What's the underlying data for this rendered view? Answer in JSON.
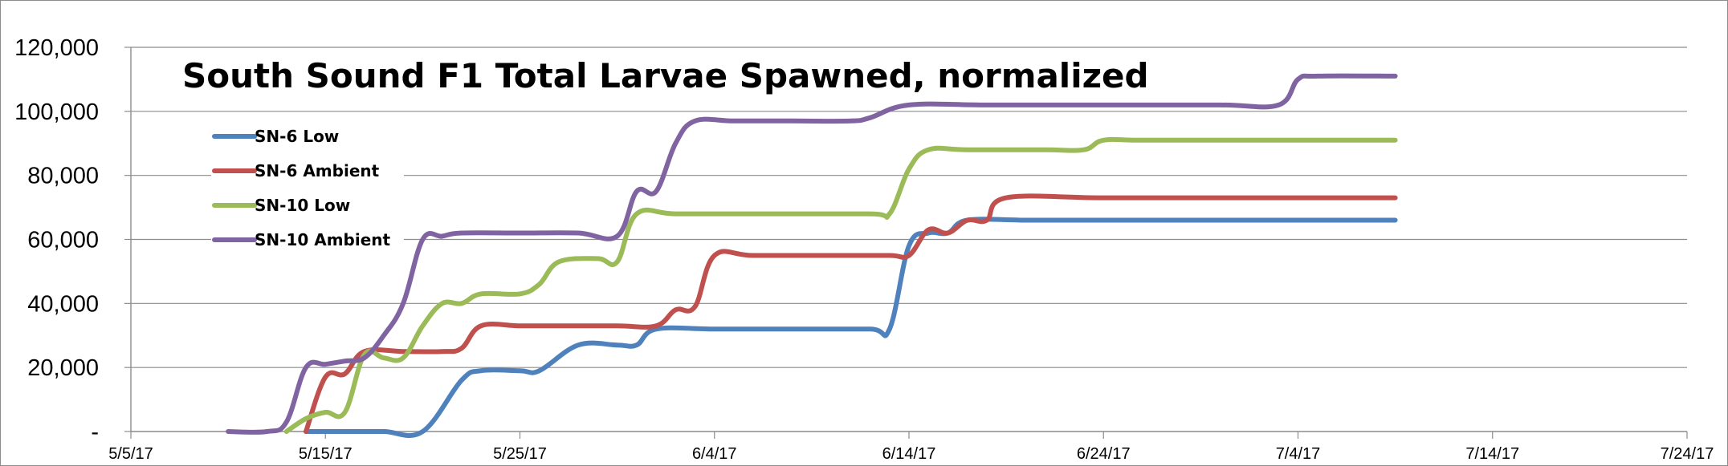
{
  "chart_data": {
    "type": "line",
    "title": "South Sound F1 Total Larvae Spawned, normalized",
    "xlabel": "",
    "ylabel": "",
    "x_unit": "date",
    "xlim": [
      "2017-05-05",
      "2017-07-24"
    ],
    "ylim": [
      0,
      120000
    ],
    "x_ticks": [
      {
        "date": "2017-05-05",
        "label": "5/5/17"
      },
      {
        "date": "2017-05-15",
        "label": "5/15/17"
      },
      {
        "date": "2017-05-25",
        "label": "5/25/17"
      },
      {
        "date": "2017-06-04",
        "label": "6/4/17"
      },
      {
        "date": "2017-06-14",
        "label": "6/14/17"
      },
      {
        "date": "2017-06-24",
        "label": "6/24/17"
      },
      {
        "date": "2017-07-04",
        "label": "7/4/17"
      },
      {
        "date": "2017-07-14",
        "label": "7/14/17"
      },
      {
        "date": "2017-07-24",
        "label": "7/24/17"
      }
    ],
    "y_ticks": [
      {
        "value": 0,
        "label": "-"
      },
      {
        "value": 20000,
        "label": "20,000"
      },
      {
        "value": 40000,
        "label": "40,000"
      },
      {
        "value": 60000,
        "label": "60,000"
      },
      {
        "value": 80000,
        "label": "80,000"
      },
      {
        "value": 100000,
        "label": "100,000"
      },
      {
        "value": 120000,
        "label": "120,000"
      }
    ],
    "grid": {
      "horizontal": true,
      "vertical": false
    },
    "legend": {
      "position": "top-left"
    },
    "series": [
      {
        "name": "SN-6 Low",
        "color": "#4f81bd",
        "points": [
          [
            "2017-05-14",
            0
          ],
          [
            "2017-05-16",
            0
          ],
          [
            "2017-05-18",
            0
          ],
          [
            "2017-05-20",
            0
          ],
          [
            "2017-05-22",
            16000
          ],
          [
            "2017-05-23",
            19000
          ],
          [
            "2017-05-25",
            19000
          ],
          [
            "2017-05-26",
            19000
          ],
          [
            "2017-05-28",
            27000
          ],
          [
            "2017-05-30",
            27000
          ],
          [
            "2017-05-31",
            27000
          ],
          [
            "2017-06-01",
            32000
          ],
          [
            "2017-06-04",
            32000
          ],
          [
            "2017-06-08",
            32000
          ],
          [
            "2017-06-12",
            32000
          ],
          [
            "2017-06-13",
            32000
          ],
          [
            "2017-06-14",
            58000
          ],
          [
            "2017-06-15",
            62000
          ],
          [
            "2017-06-16",
            62000
          ],
          [
            "2017-06-17",
            66000
          ],
          [
            "2017-06-20",
            66000
          ],
          [
            "2017-06-24",
            66000
          ],
          [
            "2017-07-01",
            66000
          ],
          [
            "2017-07-09",
            66000
          ]
        ]
      },
      {
        "name": "SN-6 Ambient",
        "color": "#c0504d",
        "points": [
          [
            "2017-05-14",
            0
          ],
          [
            "2017-05-15",
            17000
          ],
          [
            "2017-05-16",
            18000
          ],
          [
            "2017-05-17",
            25000
          ],
          [
            "2017-05-19",
            25000
          ],
          [
            "2017-05-21",
            25000
          ],
          [
            "2017-05-22",
            26000
          ],
          [
            "2017-05-23",
            33000
          ],
          [
            "2017-05-25",
            33000
          ],
          [
            "2017-05-27",
            33000
          ],
          [
            "2017-05-30",
            33000
          ],
          [
            "2017-06-01",
            33000
          ],
          [
            "2017-06-02",
            38000
          ],
          [
            "2017-06-03",
            39000
          ],
          [
            "2017-06-04",
            55000
          ],
          [
            "2017-06-06",
            55000
          ],
          [
            "2017-06-10",
            55000
          ],
          [
            "2017-06-13",
            55000
          ],
          [
            "2017-06-14",
            55000
          ],
          [
            "2017-06-15",
            63000
          ],
          [
            "2017-06-16",
            62000
          ],
          [
            "2017-06-17",
            66000
          ],
          [
            "2017-06-18",
            66000
          ],
          [
            "2017-06-19",
            73000
          ],
          [
            "2017-06-24",
            73000
          ],
          [
            "2017-07-01",
            73000
          ],
          [
            "2017-07-09",
            73000
          ]
        ]
      },
      {
        "name": "SN-10 Low",
        "color": "#9bbb59",
        "points": [
          [
            "2017-05-13",
            0
          ],
          [
            "2017-05-14",
            4000
          ],
          [
            "2017-05-15",
            6000
          ],
          [
            "2017-05-16",
            6000
          ],
          [
            "2017-05-17",
            24000
          ],
          [
            "2017-05-18",
            23000
          ],
          [
            "2017-05-19",
            23000
          ],
          [
            "2017-05-20",
            33000
          ],
          [
            "2017-05-21",
            40000
          ],
          [
            "2017-05-22",
            40000
          ],
          [
            "2017-05-23",
            43000
          ],
          [
            "2017-05-25",
            43000
          ],
          [
            "2017-05-26",
            46000
          ],
          [
            "2017-05-27",
            53000
          ],
          [
            "2017-05-29",
            54000
          ],
          [
            "2017-05-30",
            53000
          ],
          [
            "2017-05-31",
            68000
          ],
          [
            "2017-06-02",
            68000
          ],
          [
            "2017-06-06",
            68000
          ],
          [
            "2017-06-12",
            68000
          ],
          [
            "2017-06-13",
            68000
          ],
          [
            "2017-06-14",
            82000
          ],
          [
            "2017-06-15",
            88000
          ],
          [
            "2017-06-17",
            88000
          ],
          [
            "2017-06-21",
            88000
          ],
          [
            "2017-06-23",
            88000
          ],
          [
            "2017-06-24",
            91000
          ],
          [
            "2017-06-26",
            91000
          ],
          [
            "2017-07-01",
            91000
          ],
          [
            "2017-07-09",
            91000
          ]
        ]
      },
      {
        "name": "SN-10 Ambient",
        "color": "#8064a2",
        "points": [
          [
            "2017-05-10",
            0
          ],
          [
            "2017-05-12",
            0
          ],
          [
            "2017-05-13",
            3000
          ],
          [
            "2017-05-14",
            20000
          ],
          [
            "2017-05-15",
            21000
          ],
          [
            "2017-05-16",
            22000
          ],
          [
            "2017-05-17",
            23000
          ],
          [
            "2017-05-18",
            30000
          ],
          [
            "2017-05-19",
            40000
          ],
          [
            "2017-05-20",
            60000
          ],
          [
            "2017-05-21",
            61000
          ],
          [
            "2017-05-22",
            62000
          ],
          [
            "2017-05-25",
            62000
          ],
          [
            "2017-05-28",
            62000
          ],
          [
            "2017-05-30",
            61000
          ],
          [
            "2017-05-31",
            75000
          ],
          [
            "2017-06-01",
            75000
          ],
          [
            "2017-06-02",
            90000
          ],
          [
            "2017-06-03",
            97000
          ],
          [
            "2017-06-05",
            97000
          ],
          [
            "2017-06-08",
            97000
          ],
          [
            "2017-06-11",
            97000
          ],
          [
            "2017-06-12",
            98000
          ],
          [
            "2017-06-14",
            102000
          ],
          [
            "2017-06-18",
            102000
          ],
          [
            "2017-06-24",
            102000
          ],
          [
            "2017-06-30",
            102000
          ],
          [
            "2017-07-03",
            102000
          ],
          [
            "2017-07-04",
            110000
          ],
          [
            "2017-07-05",
            111000
          ],
          [
            "2017-07-09",
            111000
          ]
        ]
      }
    ]
  }
}
